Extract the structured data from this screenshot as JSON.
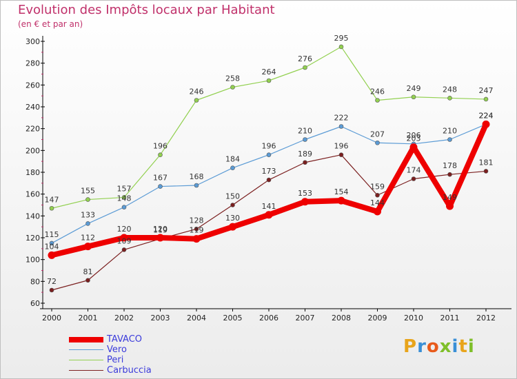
{
  "title": "Evolution des Impôts locaux par Habitant",
  "subtitle": "(en € et par an)",
  "logo": {
    "text": "Proxiti",
    "colors": [
      "#e8a41b",
      "#3a8fd6",
      "#e85a1b",
      "#7fbf2a",
      "#3a8fd6",
      "#e8a41b",
      "#7fbf2a"
    ]
  },
  "chart_data": {
    "type": "line",
    "title": "Evolution des Impôts locaux par Habitant",
    "ylabel": "(en € et par an)",
    "xlabel": "",
    "ylim": [
      60,
      300
    ],
    "yticks": [
      60,
      80,
      100,
      120,
      140,
      160,
      180,
      200,
      220,
      240,
      260,
      280,
      300
    ],
    "categories": [
      "2000",
      "2001",
      "2002",
      "2003",
      "2004",
      "2005",
      "2006",
      "2007",
      "2008",
      "2009",
      "2010",
      "2011",
      "2012"
    ],
    "series": [
      {
        "name": "TAVACO",
        "color": "#ee0000",
        "values": [
          104,
          112,
          120,
          120,
          119,
          130,
          141,
          153,
          154,
          144,
          203,
          149,
          224
        ]
      },
      {
        "name": "Vero",
        "color": "#5b9bd5",
        "values": [
          115,
          133,
          148,
          167,
          168,
          184,
          196,
          210,
          222,
          207,
          206,
          210,
          224
        ]
      },
      {
        "name": "Peri",
        "color": "#92d050",
        "values": [
          147,
          155,
          157,
          196,
          246,
          258,
          264,
          276,
          295,
          246,
          249,
          248,
          247
        ]
      },
      {
        "name": "Carbuccia",
        "color": "#7b1f1f",
        "values": [
          72,
          81,
          109,
          119,
          128,
          150,
          173,
          189,
          196,
          159,
          174,
          178,
          181
        ]
      }
    ],
    "legend_position": "bottom-left",
    "grid": false
  }
}
